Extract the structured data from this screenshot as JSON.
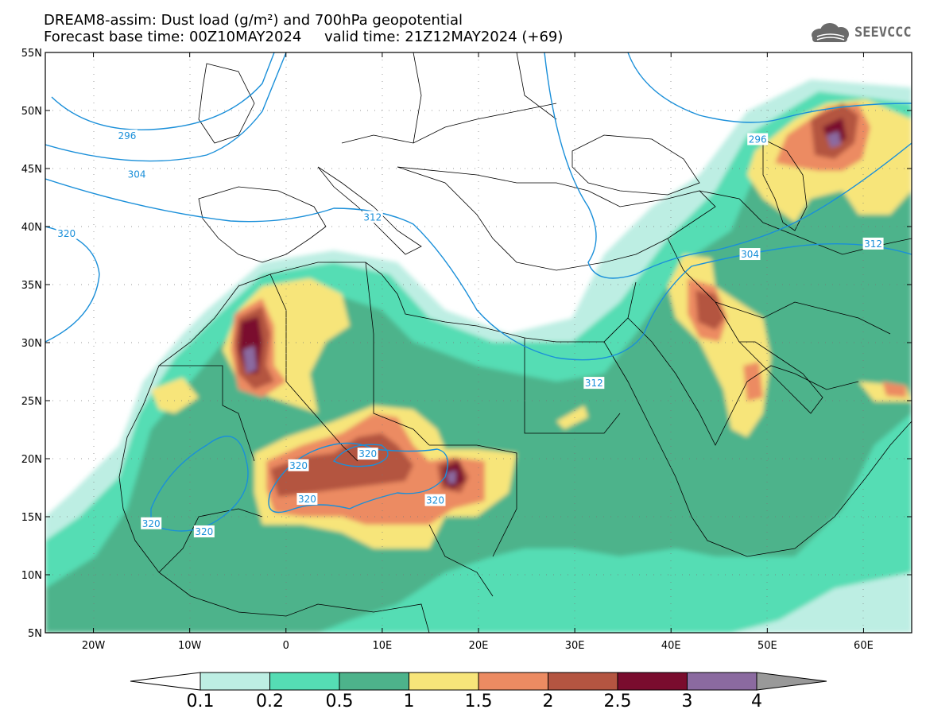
{
  "header": {
    "title_line1": "DREAM8-assim: Dust load (g/m²) and 700hPa geopotential",
    "title_line2": "Forecast base time: 00Z10MAY2024     valid time: 21Z12MAY2024 (+69)",
    "logo_text": "SEEVCCC"
  },
  "map_data": {
    "lat_ticks": [
      "55N",
      "50N",
      "45N",
      "40N",
      "35N",
      "30N",
      "25N",
      "20N",
      "15N",
      "10N",
      "5N"
    ],
    "lon_ticks": [
      "20W",
      "10W",
      "0",
      "10E",
      "20E",
      "30E",
      "40E",
      "50E",
      "60E"
    ],
    "contour_labels": [
      {
        "text": "296",
        "lon": -16.5,
        "lat": 47.8
      },
      {
        "text": "304",
        "lon": -15.5,
        "lat": 44.5
      },
      {
        "text": "312",
        "lon": 9,
        "lat": 40.8
      },
      {
        "text": "320",
        "lon": -22.8,
        "lat": 39.4
      },
      {
        "text": "296",
        "lon": 49,
        "lat": 47.5
      },
      {
        "text": "304",
        "lon": 48.2,
        "lat": 37.6
      },
      {
        "text": "312",
        "lon": 61,
        "lat": 38.5
      },
      {
        "text": "312",
        "lon": 32,
        "lat": 26.5
      },
      {
        "text": "320",
        "lon": 8.5,
        "lat": 20.4
      },
      {
        "text": "320",
        "lon": 1.3,
        "lat": 19.4
      },
      {
        "text": "320",
        "lon": 2.2,
        "lat": 16.5
      },
      {
        "text": "320",
        "lon": 15.5,
        "lat": 16.4
      },
      {
        "text": "320",
        "lon": -14,
        "lat": 14.4
      },
      {
        "text": "320",
        "lon": -8.5,
        "lat": 13.7
      }
    ]
  },
  "colorbar": {
    "labels": [
      "0.1",
      "0.2",
      "0.5",
      "1",
      "1.5",
      "2",
      "2.5",
      "3",
      "4"
    ],
    "colors": [
      "#bdeee3",
      "#55ddb4",
      "#4db38b",
      "#f7e57a",
      "#ec8b62",
      "#b45541",
      "#7a0c2e",
      "#8b6aa0"
    ],
    "under_color": "#ffffff",
    "over_color": "#999999"
  },
  "colors": {
    "contour": "#1a8fd9",
    "border": "#000000"
  }
}
